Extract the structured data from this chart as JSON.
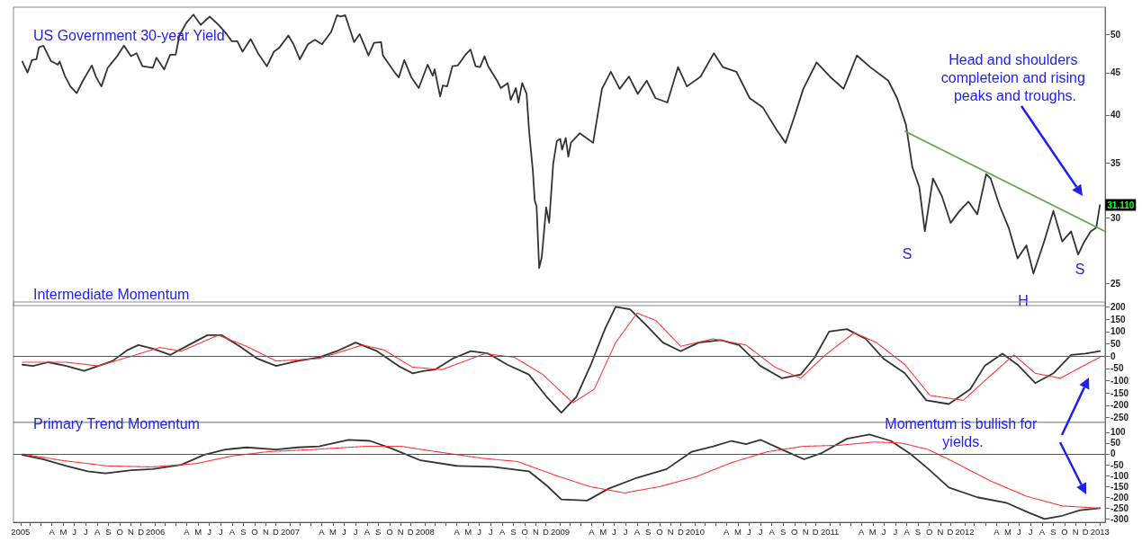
{
  "chart_data": [
    {
      "type": "line",
      "title": "US Government 30-year Yield",
      "xlim": [
        "2005-01-01",
        "2013-02-03"
      ],
      "ylim": [
        23.5,
        54
      ],
      "yticks": [
        25,
        30,
        35,
        40,
        45,
        50
      ],
      "log": true,
      "tick_labels": "y",
      "annotations": [
        "Head and shoulders completeion and rising peaks and troughs.",
        "S",
        "H",
        "S"
      ],
      "series": [
        {
          "color": "#333333",
          "x": [
            "2005-01-25",
            "2005-02-08",
            "2005-02-20",
            "2005-03-04",
            "2005-03-11",
            "2005-03-23",
            "2005-04-12",
            "2005-05-01",
            "2005-05-06",
            "2005-05-20",
            "2005-06-04",
            "2005-06-21",
            "2005-07-08",
            "2005-08-01",
            "2005-08-13",
            "2005-08-27",
            "2005-09-13",
            "2005-10-07",
            "2005-10-27",
            "2005-11-15",
            "2005-11-30",
            "2005-12-16",
            "2006-01-13",
            "2006-01-23",
            "2006-02-13",
            "2006-03-01",
            "2006-03-16",
            "2006-03-26",
            "2006-04-14",
            "2006-05-03",
            "2006-05-23",
            "2006-06-16",
            "2006-07-10",
            "2006-08-01",
            "2006-08-15",
            "2006-08-30",
            "2006-09-13",
            "2006-10-05",
            "2006-10-25",
            "2006-11-18",
            "2006-12-07",
            "2006-12-21",
            "2007-01-15",
            "2007-01-29",
            "2007-02-15",
            "2007-03-09",
            "2007-03-28",
            "2007-04-16",
            "2007-05-11",
            "2007-05-27",
            "2007-06-06",
            "2007-06-18",
            "2007-07-12",
            "2007-07-27",
            "2007-08-20",
            "2007-09-04",
            "2007-09-23",
            "2007-09-28",
            "2007-11-01",
            "2007-11-10",
            "2007-11-25",
            "2007-12-14",
            "2008-01-03",
            "2008-01-27",
            "2008-02-10",
            "2008-02-15",
            "2008-03-01",
            "2008-03-08",
            "2008-03-20",
            "2008-04-03",
            "2008-04-18",
            "2008-05-07",
            "2008-05-22",
            "2008-06-05",
            "2008-06-17",
            "2008-06-29",
            "2008-07-09",
            "2008-08-02",
            "2008-08-12",
            "2008-08-31",
            "2008-09-08",
            "2008-09-22",
            "2008-09-29",
            "2008-10-09",
            "2008-10-21",
            "2008-10-28",
            "2008-11-07",
            "2008-11-12",
            "2008-11-17",
            "2008-11-24",
            "2008-12-01",
            "2008-12-13",
            "2008-12-21",
            "2009-01-01",
            "2009-01-11",
            "2009-01-20",
            "2009-01-25",
            "2009-02-04",
            "2009-02-11",
            "2009-02-18",
            "2009-03-14",
            "2009-04-19",
            "2009-05-13",
            "2009-06-06",
            "2009-06-30",
            "2009-07-25",
            "2009-08-18",
            "2009-09-11",
            "2009-10-05",
            "2009-11-06",
            "2009-12-05",
            "2009-12-29",
            "2010-02-04",
            "2010-03-12",
            "2010-04-05",
            "2010-05-12",
            "2010-06-17",
            "2010-07-23",
            "2010-08-28",
            "2010-09-22",
            "2010-10-16",
            "2010-11-09",
            "2010-12-15",
            "2011-01-20",
            "2011-02-26",
            "2011-04-03",
            "2011-05-09",
            "2011-06-27",
            "2011-07-21",
            "2011-08-14",
            "2011-08-31",
            "2011-09-19",
            "2011-10-04",
            "2011-10-26",
            "2011-11-19",
            "2011-12-13",
            "2012-01-06",
            "2012-01-30",
            "2012-02-23",
            "2012-03-18",
            "2012-03-30",
            "2012-04-24",
            "2012-05-18",
            "2012-06-11",
            "2012-07-05",
            "2012-07-24",
            "2012-08-22",
            "2012-09-16",
            "2012-10-10",
            "2012-11-03",
            "2012-11-22",
            "2012-12-09",
            "2012-12-26",
            "2013-01-10",
            "2013-01-20"
          ],
          "values": [
            46.4,
            45.0,
            46.6,
            46.7,
            48.3,
            48.5,
            46.5,
            46.0,
            46.4,
            44.6,
            43.3,
            42.5,
            44.0,
            45.9,
            44.4,
            43.3,
            45.6,
            47.0,
            48.5,
            47.1,
            47.5,
            45.8,
            45.6,
            46.9,
            45.4,
            47.3,
            47.3,
            49.9,
            51.7,
            52.9,
            51.4,
            52.6,
            51.4,
            50.1,
            49.1,
            49.1,
            47.7,
            49.4,
            47.5,
            45.8,
            47.7,
            48.2,
            49.9,
            48.7,
            46.7,
            48.7,
            49.3,
            48.7,
            50.4,
            52.8,
            52.6,
            52.8,
            49.0,
            50.1,
            47.2,
            48.9,
            49.0,
            47.2,
            44.9,
            44.4,
            46.6,
            44.4,
            43.1,
            46.0,
            44.6,
            45.4,
            42.1,
            43.4,
            43.3,
            45.8,
            45.9,
            47.2,
            48.0,
            45.8,
            45.7,
            47.1,
            45.8,
            44.0,
            43.1,
            43.7,
            41.7,
            43.1,
            41.4,
            43.7,
            42.4,
            38.1,
            34.2,
            31.5,
            31.0,
            26.1,
            26.9,
            30.9,
            29.6,
            34.9,
            37.2,
            37.4,
            36.3,
            37.5,
            35.6,
            37.0,
            38.0,
            37.0,
            43.0,
            45.1,
            43.0,
            44.5,
            42.4,
            44.0,
            41.9,
            41.4,
            45.7,
            43.3,
            44.5,
            47.5,
            45.7,
            45.1,
            41.9,
            40.8,
            38.4,
            37.0,
            39.8,
            43.0,
            46.3,
            44.5,
            43.0,
            47.2,
            45.7,
            44.0,
            41.9,
            38.9,
            34.6,
            32.7,
            28.9,
            33.5,
            31.9,
            29.6,
            30.6,
            31.4,
            30.3,
            33.9,
            33.5,
            31.0,
            29.2,
            26.8,
            27.8,
            25.7,
            28.1,
            30.6,
            28.1,
            28.9,
            27.1,
            28.1,
            28.9,
            29.2,
            31.11
          ],
          "value_labels": [
            null,
            null,
            null,
            null,
            null,
            null,
            null,
            null,
            null,
            null,
            null,
            null,
            null,
            null,
            null,
            null,
            null,
            null,
            null,
            null,
            null,
            null,
            null,
            null,
            null,
            null,
            null,
            null,
            null,
            null,
            null,
            null,
            null,
            null,
            null,
            null,
            null,
            null,
            null,
            null,
            null,
            null,
            null,
            null,
            null,
            null,
            null,
            null,
            null,
            null,
            null,
            null,
            null,
            null,
            null,
            null,
            null,
            null,
            null,
            null,
            null,
            null,
            null,
            null,
            null,
            null,
            null,
            null,
            null,
            null,
            null,
            null,
            null,
            null,
            null,
            null,
            null,
            null,
            null,
            null,
            null,
            null,
            null,
            null,
            null,
            null,
            null,
            null,
            null,
            null,
            null,
            null,
            null,
            null,
            null,
            null,
            null,
            null,
            null,
            null,
            null,
            null,
            null,
            null,
            null,
            null,
            null,
            null,
            null,
            null,
            null,
            null,
            null,
            null,
            null,
            null,
            null,
            null,
            null,
            null,
            null,
            null,
            null,
            null,
            null,
            null,
            null,
            null,
            null,
            null,
            null,
            null,
            null,
            null,
            null,
            null,
            null,
            null,
            null,
            null,
            null,
            null,
            null,
            null,
            null,
            null,
            null,
            null,
            null,
            null,
            null,
            null,
            null,
            null,
            "31.110"
          ]
        },
        {
          "type": "line",
          "color": "#6aa84f",
          "x": [
            "2011-08-12",
            "2013-02-03"
          ],
          "values": [
            38.2,
            28.9
          ]
        }
      ]
    },
    {
      "type": "line",
      "title": "Intermediate Momentum",
      "xlim": [
        "2005-01-01",
        "2013-02-03"
      ],
      "ylim": [
        -270,
        220
      ],
      "yticks": [
        -250,
        -200,
        -150,
        -100,
        -50,
        0,
        50,
        100,
        150,
        200
      ],
      "tick_labels": "y",
      "ref_lines": [
        {
          "axis": "y",
          "value": 0,
          "color": "#555555"
        }
      ],
      "series": [
        {
          "color": "#333333",
          "x": [
            "2005-01-25",
            "2005-02-23",
            "2005-04-05",
            "2005-05-24",
            "2005-07-11",
            "2005-08-19",
            "2005-09-26",
            "2005-11-06",
            "2005-12-05",
            "2006-01-13",
            "2006-03-02",
            "2006-04-20",
            "2006-06-10",
            "2006-07-19",
            "2006-09-05",
            "2006-10-23",
            "2006-12-13",
            "2007-02-09",
            "2007-04-08",
            "2007-05-26",
            "2007-07-16",
            "2007-09-12",
            "2007-11-09",
            "2007-12-17",
            "2008-01-18",
            "2008-02-16",
            "2008-04-04",
            "2008-05-23",
            "2008-07-10",
            "2008-08-30",
            "2008-10-27",
            "2008-12-14",
            "2009-01-23",
            "2009-03-05",
            "2009-04-13",
            "2009-05-21",
            "2009-06-19",
            "2009-07-28",
            "2009-09-07",
            "2009-10-25",
            "2009-12-12",
            "2010-01-30",
            "2010-03-31",
            "2010-05-19",
            "2010-07-16",
            "2010-09-12",
            "2010-11-02",
            "2010-12-10",
            "2011-01-18",
            "2011-03-07",
            "2011-04-27",
            "2011-06-14",
            "2011-08-11",
            "2011-10-08",
            "2011-12-08",
            "2012-02-04",
            "2012-03-14",
            "2012-05-01",
            "2012-06-11",
            "2012-07-29",
            "2012-09-16",
            "2012-11-03",
            "2012-12-12",
            "2013-01-20"
          ],
          "values": [
            -35,
            -40,
            -25,
            -40,
            -60,
            -40,
            -20,
            25,
            45,
            30,
            5,
            45,
            85,
            85,
            40,
            -10,
            -40,
            -20,
            -5,
            20,
            55,
            20,
            -40,
            -70,
            -60,
            -55,
            -10,
            20,
            10,
            -35,
            -75,
            -165,
            -230,
            -165,
            -35,
            110,
            200,
            190,
            130,
            55,
            20,
            55,
            65,
            45,
            -40,
            -90,
            -75,
            -5,
            100,
            110,
            70,
            -10,
            -70,
            -180,
            -195,
            -135,
            -40,
            10,
            -35,
            -110,
            -70,
            5,
            10,
            20
          ]
        },
        {
          "color": "#ff3333",
          "line_style": "dotted",
          "x": [
            "2005-01-25",
            "2005-05-24",
            "2005-08-19",
            "2005-11-06",
            "2006-02-01",
            "2006-03-31",
            "2006-07-09",
            "2006-09-24",
            "2006-12-13",
            "2007-04-08",
            "2007-08-04",
            "2007-10-01",
            "2007-12-17",
            "2008-03-06",
            "2008-06-30",
            "2008-09-18",
            "2008-12-04",
            "2009-02-23",
            "2009-04-22",
            "2009-06-19",
            "2009-08-16",
            "2009-10-06",
            "2009-12-12",
            "2010-03-10",
            "2010-06-07",
            "2010-08-24",
            "2010-11-02",
            "2011-01-08",
            "2011-03-27",
            "2011-05-26",
            "2011-08-11",
            "2011-10-18",
            "2012-01-16",
            "2012-04-02",
            "2012-06-01",
            "2012-07-29",
            "2012-10-05",
            "2012-12-12",
            "2013-01-20"
          ],
          "values": [
            -25,
            -25,
            -40,
            -5,
            35,
            20,
            85,
            40,
            -20,
            -10,
            45,
            25,
            -45,
            -55,
            10,
            -5,
            -75,
            -190,
            -135,
            55,
            175,
            145,
            40,
            70,
            45,
            -45,
            -90,
            5,
            95,
            55,
            -35,
            -160,
            -180,
            -75,
            5,
            -70,
            -90,
            -35,
            -5
          ]
        }
      ]
    },
    {
      "type": "line",
      "title": "Primary Trend Momentum",
      "xlim": [
        "2005-01-01",
        "2013-02-03"
      ],
      "ylim": [
        -315,
        145
      ],
      "yticks": [
        -300,
        -250,
        -200,
        -150,
        -100,
        -50,
        0,
        50,
        100
      ],
      "xticks": [
        {
          "value": "2005-01-20",
          "label": "2005"
        },
        {
          "value": "2005-02-15",
          "label": null
        },
        {
          "value": "2005-03-16",
          "label": null
        },
        {
          "value": "2005-04-15",
          "label": "A"
        },
        {
          "value": "2005-05-16",
          "label": "M"
        },
        {
          "value": "2005-06-15",
          "label": "J"
        },
        {
          "value": "2005-07-16",
          "label": "J"
        },
        {
          "value": "2005-08-16",
          "label": "A"
        },
        {
          "value": "2005-09-15",
          "label": "S"
        },
        {
          "value": "2005-10-16",
          "label": "O"
        },
        {
          "value": "2005-11-15",
          "label": "N"
        },
        {
          "value": "2005-12-12",
          "label": "D"
        },
        {
          "value": "2006-01-20",
          "label": "2006"
        },
        {
          "value": "2006-02-15",
          "label": null
        },
        {
          "value": "2006-03-16",
          "label": null
        },
        {
          "value": "2006-04-15",
          "label": "A"
        },
        {
          "value": "2006-05-16",
          "label": "M"
        },
        {
          "value": "2006-06-15",
          "label": "J"
        },
        {
          "value": "2006-07-16",
          "label": "J"
        },
        {
          "value": "2006-08-16",
          "label": "A"
        },
        {
          "value": "2006-09-15",
          "label": "S"
        },
        {
          "value": "2006-10-16",
          "label": "O"
        },
        {
          "value": "2006-11-15",
          "label": "N"
        },
        {
          "value": "2006-12-12",
          "label": "D"
        },
        {
          "value": "2007-01-20",
          "label": "2007"
        },
        {
          "value": "2007-02-15",
          "label": null
        },
        {
          "value": "2007-03-16",
          "label": null
        },
        {
          "value": "2007-04-15",
          "label": "A"
        },
        {
          "value": "2007-05-16",
          "label": "M"
        },
        {
          "value": "2007-06-15",
          "label": "J"
        },
        {
          "value": "2007-07-16",
          "label": "J"
        },
        {
          "value": "2007-08-16",
          "label": "A"
        },
        {
          "value": "2007-09-15",
          "label": "S"
        },
        {
          "value": "2007-10-16",
          "label": "O"
        },
        {
          "value": "2007-11-15",
          "label": "N"
        },
        {
          "value": "2007-12-12",
          "label": "D"
        },
        {
          "value": "2008-01-20",
          "label": "2008"
        },
        {
          "value": "2008-02-15",
          "label": null
        },
        {
          "value": "2008-03-16",
          "label": null
        },
        {
          "value": "2008-04-15",
          "label": "A"
        },
        {
          "value": "2008-05-16",
          "label": "M"
        },
        {
          "value": "2008-06-15",
          "label": "J"
        },
        {
          "value": "2008-07-16",
          "label": "J"
        },
        {
          "value": "2008-08-16",
          "label": "A"
        },
        {
          "value": "2008-09-15",
          "label": "S"
        },
        {
          "value": "2008-10-16",
          "label": "O"
        },
        {
          "value": "2008-11-15",
          "label": "N"
        },
        {
          "value": "2008-12-12",
          "label": "D"
        },
        {
          "value": "2009-01-20",
          "label": "2009"
        },
        {
          "value": "2009-02-15",
          "label": null
        },
        {
          "value": "2009-03-16",
          "label": null
        },
        {
          "value": "2009-04-15",
          "label": "A"
        },
        {
          "value": "2009-05-16",
          "label": "M"
        },
        {
          "value": "2009-06-15",
          "label": "J"
        },
        {
          "value": "2009-07-16",
          "label": "J"
        },
        {
          "value": "2009-08-16",
          "label": "A"
        },
        {
          "value": "2009-09-15",
          "label": "S"
        },
        {
          "value": "2009-10-16",
          "label": "O"
        },
        {
          "value": "2009-11-15",
          "label": "N"
        },
        {
          "value": "2009-12-12",
          "label": "D"
        },
        {
          "value": "2010-01-20",
          "label": "2010"
        },
        {
          "value": "2010-02-15",
          "label": null
        },
        {
          "value": "2010-03-16",
          "label": null
        },
        {
          "value": "2010-04-15",
          "label": "A"
        },
        {
          "value": "2010-05-16",
          "label": "M"
        },
        {
          "value": "2010-06-15",
          "label": "J"
        },
        {
          "value": "2010-07-16",
          "label": "J"
        },
        {
          "value": "2010-08-16",
          "label": "A"
        },
        {
          "value": "2010-09-15",
          "label": "S"
        },
        {
          "value": "2010-10-16",
          "label": "O"
        },
        {
          "value": "2010-11-15",
          "label": "N"
        },
        {
          "value": "2010-12-12",
          "label": "D"
        },
        {
          "value": "2011-01-20",
          "label": "2011"
        },
        {
          "value": "2011-02-15",
          "label": null
        },
        {
          "value": "2011-03-16",
          "label": null
        },
        {
          "value": "2011-04-15",
          "label": "A"
        },
        {
          "value": "2011-05-16",
          "label": "M"
        },
        {
          "value": "2011-06-15",
          "label": "J"
        },
        {
          "value": "2011-07-16",
          "label": "J"
        },
        {
          "value": "2011-08-16",
          "label": "A"
        },
        {
          "value": "2011-09-15",
          "label": "S"
        },
        {
          "value": "2011-10-16",
          "label": "O"
        },
        {
          "value": "2011-11-15",
          "label": "N"
        },
        {
          "value": "2011-12-12",
          "label": "D"
        },
        {
          "value": "2012-01-20",
          "label": "2012"
        },
        {
          "value": "2012-02-15",
          "label": null
        },
        {
          "value": "2012-03-16",
          "label": null
        },
        {
          "value": "2012-04-15",
          "label": "A"
        },
        {
          "value": "2012-05-16",
          "label": "M"
        },
        {
          "value": "2012-06-15",
          "label": "J"
        },
        {
          "value": "2012-07-16",
          "label": "J"
        },
        {
          "value": "2012-08-16",
          "label": "A"
        },
        {
          "value": "2012-09-15",
          "label": "S"
        },
        {
          "value": "2012-10-16",
          "label": "O"
        },
        {
          "value": "2012-11-15",
          "label": "N"
        },
        {
          "value": "2012-12-12",
          "label": "D"
        },
        {
          "value": "2013-01-20",
          "label": "2013"
        }
      ],
      "annotations": [
        "Momentum is bullish for yields."
      ],
      "ref_lines": [
        {
          "axis": "y",
          "value": 0,
          "color": "#555555"
        }
      ],
      "series": [
        {
          "color": "#333333",
          "x": [
            "2005-01-25",
            "2005-03-24",
            "2005-05-24",
            "2005-07-21",
            "2005-09-07",
            "2005-11-16",
            "2006-01-13",
            "2006-03-31",
            "2006-05-31",
            "2006-07-28",
            "2006-09-24",
            "2006-12-13",
            "2007-02-09",
            "2007-04-08",
            "2007-06-27",
            "2007-08-24",
            "2007-10-21",
            "2008-01-08",
            "2008-04-14",
            "2008-07-22",
            "2008-10-27",
            "2008-12-14",
            "2009-01-23",
            "2009-04-03",
            "2009-05-31",
            "2009-08-16",
            "2009-11-04",
            "2010-01-11",
            "2010-03-10",
            "2010-04-29",
            "2010-06-07",
            "2010-07-16",
            "2010-09-12",
            "2010-11-11",
            "2010-12-30",
            "2011-03-07",
            "2011-05-07",
            "2011-07-04",
            "2011-08-26",
            "2011-10-14",
            "2011-12-08",
            "2012-02-23",
            "2012-05-11",
            "2012-07-10",
            "2012-08-23",
            "2012-10-10",
            "2012-11-27",
            "2013-01-20"
          ],
          "values": [
            -5,
            -25,
            -55,
            -80,
            -90,
            -75,
            -70,
            -50,
            -5,
            20,
            30,
            20,
            30,
            35,
            65,
            60,
            25,
            -30,
            -55,
            -60,
            -80,
            -145,
            -210,
            -215,
            -160,
            -110,
            -70,
            10,
            35,
            60,
            45,
            65,
            20,
            -25,
            5,
            70,
            90,
            60,
            0,
            -70,
            -155,
            -200,
            -225,
            -270,
            -300,
            -285,
            -260,
            -250
          ]
        },
        {
          "color": "#ff3333",
          "line_style": "dotted",
          "x": [
            "2005-01-25",
            "2005-05-12",
            "2005-09-09",
            "2006-01-08",
            "2006-05-09",
            "2006-08-14",
            "2006-11-19",
            "2007-03-19",
            "2007-08-11",
            "2007-11-16",
            "2008-02-21",
            "2008-06-22",
            "2008-09-26",
            "2009-01-01",
            "2009-04-08",
            "2009-07-13",
            "2009-10-18",
            "2010-01-23",
            "2010-04-29",
            "2010-08-04",
            "2010-11-09",
            "2011-02-14",
            "2011-05-21",
            "2011-08-02",
            "2011-10-14",
            "2011-12-25",
            "2012-03-30",
            "2012-07-05",
            "2012-10-10",
            "2013-01-20"
          ],
          "values": [
            0,
            -30,
            -55,
            -60,
            -45,
            -10,
            10,
            20,
            35,
            35,
            10,
            -20,
            -35,
            -95,
            -150,
            -180,
            -150,
            -105,
            -40,
            10,
            35,
            40,
            55,
            50,
            20,
            -40,
            -125,
            -195,
            -240,
            -250
          ]
        }
      ]
    }
  ]
}
